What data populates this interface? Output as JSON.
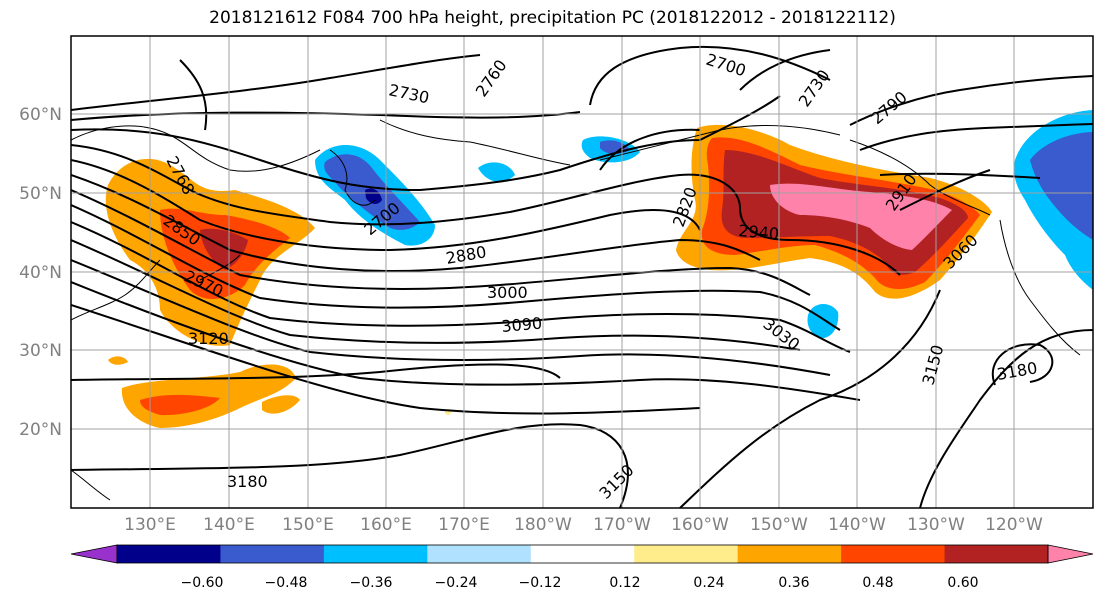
{
  "title": "2018121612 F084 700 hPa height, precipitation PC (2018122012 - 2018122112)",
  "map": {
    "lon_ticks": [
      "130°E",
      "140°E",
      "150°E",
      "160°E",
      "170°E",
      "180°W",
      "170°W",
      "160°W",
      "150°W",
      "140°W",
      "130°W",
      "120°W"
    ],
    "lat_ticks": [
      "60°N",
      "50°N",
      "40°N",
      "30°N",
      "20°N"
    ],
    "contour_labels": [
      {
        "text": "2730"
      },
      {
        "text": "2760"
      },
      {
        "text": "2700"
      },
      {
        "text": "2730"
      },
      {
        "text": "2790"
      },
      {
        "text": "2768"
      },
      {
        "text": "2850"
      },
      {
        "text": "2970"
      },
      {
        "text": "3120"
      },
      {
        "text": "2700"
      },
      {
        "text": "2880"
      },
      {
        "text": "3000"
      },
      {
        "text": "3090"
      },
      {
        "text": "2820"
      },
      {
        "text": "2940"
      },
      {
        "text": "2910"
      },
      {
        "text": "3060"
      },
      {
        "text": "3030"
      },
      {
        "text": "3150"
      },
      {
        "text": "3180"
      },
      {
        "text": "3180"
      },
      {
        "text": "3150"
      }
    ]
  },
  "colorbar": {
    "labels": [
      "−0.60",
      "−0.48",
      "−0.36",
      "−0.24",
      "−0.12",
      "0.12",
      "0.24",
      "0.36",
      "0.48",
      "0.60"
    ],
    "colors": [
      "#9932cc",
      "#00008b",
      "#3a5bcd",
      "#00bfff",
      "#b0e2ff",
      "#ffffff",
      "#ffec8b",
      "#ffa500",
      "#ff4500",
      "#b22222",
      "#ff82ab"
    ]
  },
  "colors": {
    "contour": "#000000",
    "grid": "#a0a0a0",
    "tick_label": "#808080"
  }
}
